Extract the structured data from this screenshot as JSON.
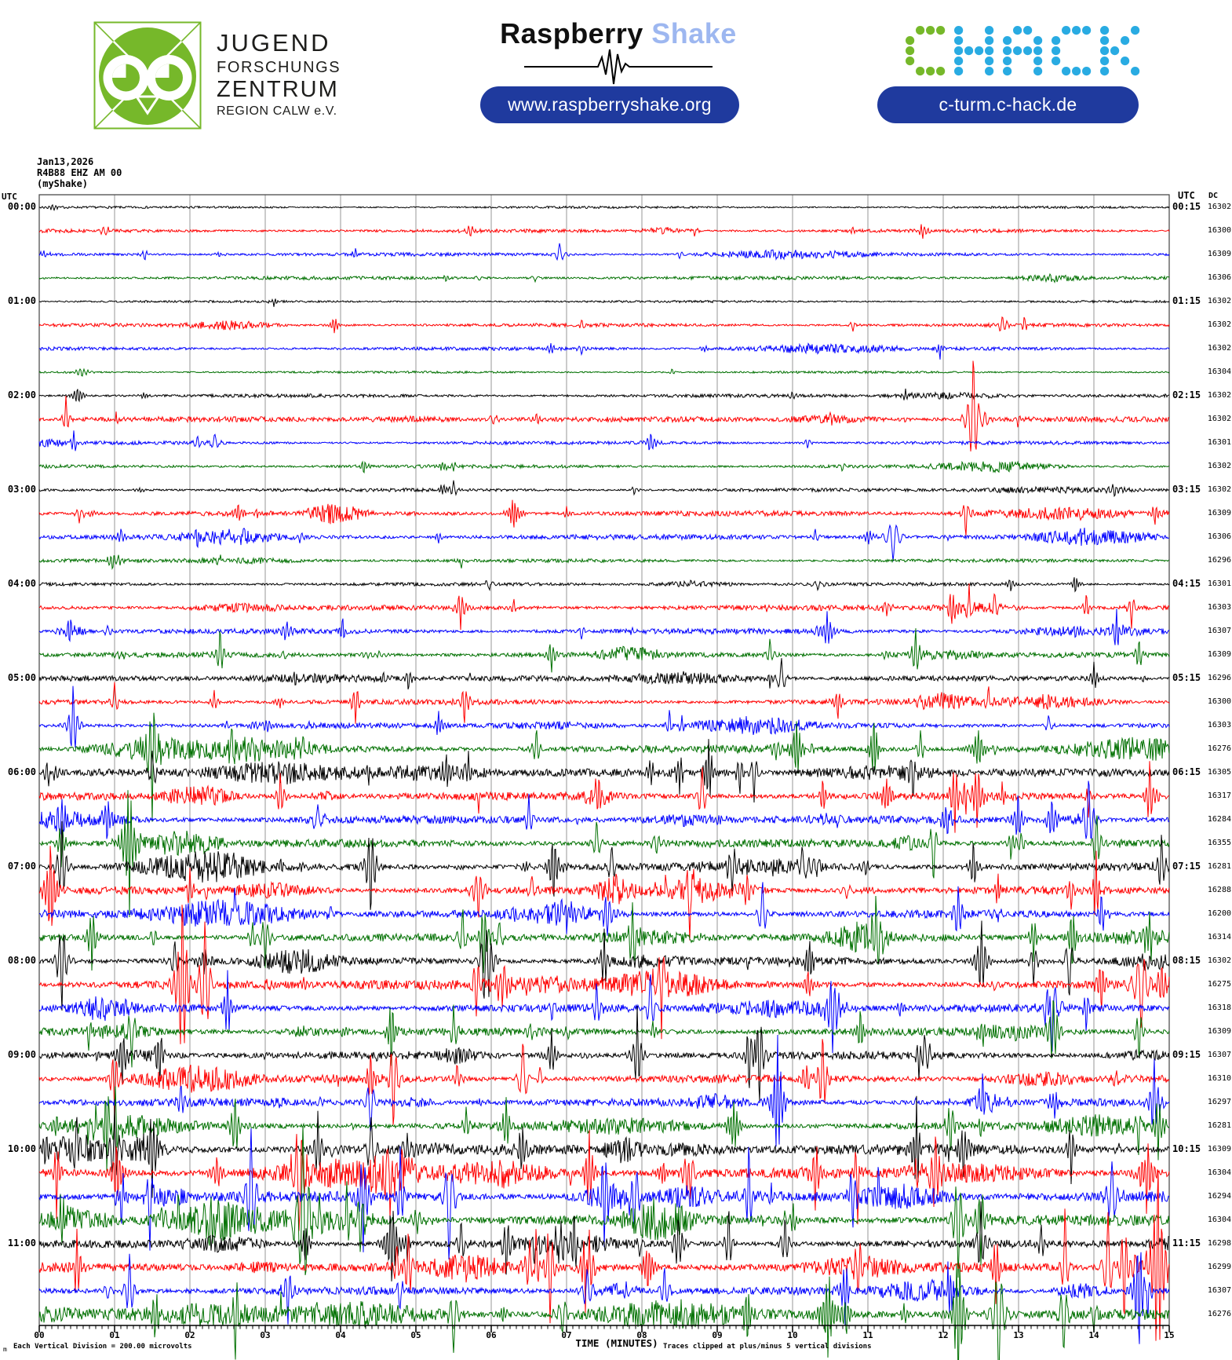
{
  "header": {
    "jfz": {
      "lines": [
        "JUGEND",
        "FORSCHUNGS",
        "ZENTRUM",
        "REGION CALW e.V."
      ],
      "logo_color": "#76b82a"
    },
    "raspberry_shake": {
      "word1": "Raspberry",
      "word2": "Shake",
      "word2_color": "#9db7f0",
      "url": "www.raspberryshake.org",
      "pill_color": "#1f3a9e"
    },
    "c_hack": {
      "wordmark": "C-HACK",
      "c_color": "#76b82a",
      "hack_color": "#29abe2",
      "url": "c-turm.c-hack.de",
      "pill_color": "#1f3a9e"
    }
  },
  "plot": {
    "title_line1": "Jan13,2026",
    "title_line2": "R4B88 EHZ AM 00",
    "title_line3": "(myShake)",
    "utc_left_header": "UTC",
    "utc_right_header": "UTC",
    "dc_header": "DC",
    "footer_left_mark": "m",
    "footer_left": "Each Vertical Division =  200.00 microvolts",
    "x_axis_title": "TIME (MINUTES)",
    "footer_right": "Traces clipped at plus/minus 5 vertical divisions"
  },
  "chart_data": {
    "type": "helicorder-seismogram",
    "station": "R4B88 EHZ AM 00",
    "date": "Jan13,2026",
    "network_note": "(myShake)",
    "minutes_per_line": 15,
    "x_tick_labels": [
      "00",
      "01",
      "02",
      "03",
      "04",
      "05",
      "06",
      "07",
      "08",
      "09",
      "10",
      "11",
      "12",
      "13",
      "14",
      "15"
    ],
    "xlabel": "TIME (MINUTES)",
    "microvolts_per_division": 200.0,
    "clip_divisions": 5,
    "trace_color_cycle": [
      "#000000",
      "#ff0000",
      "#0000ff",
      "#007000"
    ],
    "grid_color": "#979797",
    "hours": [
      {
        "left": "00:00",
        "right": "00:15"
      },
      {
        "left": "01:00",
        "right": "01:15"
      },
      {
        "left": "02:00",
        "right": "02:15"
      },
      {
        "left": "03:00",
        "right": "03:15"
      },
      {
        "left": "04:00",
        "right": "04:15"
      },
      {
        "left": "05:00",
        "right": "05:15"
      },
      {
        "left": "06:00",
        "right": "06:15"
      },
      {
        "left": "07:00",
        "right": "07:15"
      },
      {
        "left": "08:00",
        "right": "08:15"
      },
      {
        "left": "09:00",
        "right": "09:15"
      },
      {
        "left": "10:00",
        "right": "10:15"
      },
      {
        "left": "11:00",
        "right": "11:15"
      }
    ],
    "rows": [
      {
        "dc": 16302,
        "activity": 0,
        "ev": []
      },
      {
        "dc": 16300,
        "activity": 1,
        "ev": [
          [
            8.7,
            7
          ],
          [
            10.8,
            6
          ]
        ]
      },
      {
        "dc": 16309,
        "activity": 1,
        "ev": [
          [
            1.4,
            9
          ],
          [
            4.2,
            8
          ],
          [
            8.5,
            6
          ]
        ]
      },
      {
        "dc": 16306,
        "activity": 1,
        "ev": [
          [
            5.4,
            5
          ]
        ]
      },
      {
        "dc": 16302,
        "activity": 0,
        "ev": []
      },
      {
        "dc": 16302,
        "activity": 1,
        "ev": [
          [
            7.2,
            7
          ],
          [
            10.8,
            8
          ]
        ]
      },
      {
        "dc": 16302,
        "activity": 1,
        "ev": [
          [
            7.2,
            10
          ]
        ]
      },
      {
        "dc": 16304,
        "activity": 0,
        "ev": [
          [
            8.4,
            5
          ]
        ]
      },
      {
        "dc": 16302,
        "activity": 1,
        "ev": [
          [
            11.5,
            6
          ]
        ]
      },
      {
        "dc": 16302,
        "activity": 2,
        "ev": [
          [
            12.4,
            88
          ],
          [
            6.6,
            8
          ],
          [
            10.5,
            9
          ]
        ]
      },
      {
        "dc": 16301,
        "activity": 1,
        "ev": [
          [
            2.1,
            12
          ],
          [
            10.2,
            8
          ]
        ]
      },
      {
        "dc": 16302,
        "activity": 1,
        "ev": [
          [
            5.5,
            8
          ]
        ]
      },
      {
        "dc": 16302,
        "activity": 1,
        "ev": [
          [
            5.5,
            12
          ],
          [
            7.9,
            7
          ]
        ]
      },
      {
        "dc": 16309,
        "activity": 2,
        "ev": [
          [
            12.3,
            30
          ],
          [
            7.0,
            8
          ],
          [
            2.9,
            7
          ]
        ]
      },
      {
        "dc": 16306,
        "activity": 2,
        "ev": [
          [
            2.1,
            14
          ],
          [
            5.3,
            10
          ],
          [
            10.3,
            10
          ]
        ]
      },
      {
        "dc": 16296,
        "activity": 1,
        "ev": [
          [
            5.6,
            8
          ],
          [
            2.4,
            6
          ]
        ]
      },
      {
        "dc": 16301,
        "activity": 1,
        "ev": [
          [
            12.9,
            12
          ],
          [
            8.7,
            8
          ]
        ]
      },
      {
        "dc": 16303,
        "activity": 2,
        "ev": [
          [
            13.9,
            20
          ],
          [
            14.5,
            25
          ],
          [
            6.3,
            10
          ]
        ]
      },
      {
        "dc": 16307,
        "activity": 2,
        "ev": [
          [
            0.4,
            18
          ],
          [
            14.3,
            30
          ],
          [
            7.2,
            12
          ]
        ]
      },
      {
        "dc": 16309,
        "activity": 2,
        "ev": [
          [
            2.4,
            35
          ],
          [
            6.8,
            25
          ],
          [
            9.7,
            20
          ],
          [
            14.6,
            25
          ]
        ]
      },
      {
        "dc": 16296,
        "activity": 2,
        "ev": [
          [
            3.4,
            15
          ],
          [
            4.9,
            18
          ],
          [
            14.0,
            20
          ],
          [
            9.7,
            12
          ]
        ]
      },
      {
        "dc": 16300,
        "activity": 2,
        "ev": [
          [
            1.0,
            25
          ],
          [
            4.2,
            30
          ],
          [
            10.6,
            25
          ],
          [
            12.6,
            20
          ]
        ]
      },
      {
        "dc": 16303,
        "activity": 2,
        "ev": [
          [
            0.45,
            55
          ],
          [
            5.3,
            20
          ],
          [
            13.4,
            15
          ]
        ]
      },
      {
        "dc": 16276,
        "activity": 3,
        "ev": [
          [
            1.5,
            90
          ],
          [
            3.5,
            25
          ],
          [
            6.6,
            30
          ],
          [
            11.7,
            25
          ]
        ]
      },
      {
        "dc": 16305,
        "activity": 3,
        "ev": [
          [
            1.5,
            30
          ],
          [
            5.7,
            25
          ],
          [
            8.5,
            30
          ],
          [
            9.3,
            30
          ],
          [
            11.6,
            35
          ]
        ]
      },
      {
        "dc": 16317,
        "activity": 3,
        "ev": [
          [
            3.2,
            35
          ],
          [
            8.8,
            40
          ],
          [
            10.4,
            30
          ],
          [
            12.3,
            30
          ]
        ]
      },
      {
        "dc": 16284,
        "activity": 3,
        "ev": [
          [
            0.3,
            40
          ],
          [
            0.9,
            35
          ],
          [
            6.5,
            35
          ],
          [
            12.1,
            30
          ]
        ]
      },
      {
        "dc": 16355,
        "activity": 3,
        "ev": [
          [
            1.2,
            110
          ],
          [
            7.4,
            30
          ],
          [
            12.9,
            25
          ]
        ]
      },
      {
        "dc": 16281,
        "activity": 3,
        "ev": [
          [
            0.3,
            60
          ],
          [
            4.4,
            70
          ],
          [
            7.6,
            35
          ],
          [
            9.2,
            40
          ],
          [
            12.4,
            40
          ],
          [
            14.9,
            45
          ]
        ]
      },
      {
        "dc": 16288,
        "activity": 3,
        "ev": [
          [
            0.15,
            80
          ],
          [
            2.0,
            30
          ],
          [
            9.4,
            35
          ],
          [
            13.7,
            30
          ]
        ]
      },
      {
        "dc": 16200,
        "activity": 3,
        "ev": [
          [
            2.6,
            30
          ],
          [
            7.0,
            35
          ],
          [
            9.6,
            45
          ],
          [
            12.2,
            50
          ]
        ]
      },
      {
        "dc": 16314,
        "activity": 3,
        "ev": [
          [
            0.7,
            50
          ],
          [
            3.0,
            40
          ],
          [
            5.9,
            60
          ],
          [
            13.2,
            35
          ]
        ]
      },
      {
        "dc": 16302,
        "activity": 3,
        "ev": [
          [
            0.3,
            70
          ],
          [
            5.9,
            50
          ],
          [
            7.5,
            40
          ],
          [
            13.2,
            35
          ]
        ]
      },
      {
        "dc": 16275,
        "activity": 3,
        "ev": [
          [
            1.9,
            120
          ],
          [
            2.2,
            90
          ],
          [
            5.8,
            40
          ],
          [
            14.1,
            45
          ]
        ]
      },
      {
        "dc": 16318,
        "activity": 3,
        "ev": [
          [
            2.5,
            45
          ],
          [
            7.4,
            35
          ],
          [
            13.4,
            40
          ]
        ]
      },
      {
        "dc": 16309,
        "activity": 3,
        "ev": [
          [
            5.5,
            30
          ],
          [
            10.9,
            35
          ],
          [
            14.6,
            40
          ]
        ]
      },
      {
        "dc": 16307,
        "activity": 3,
        "ev": [
          [
            1.1,
            45
          ],
          [
            1.6,
            40
          ],
          [
            6.8,
            35
          ],
          [
            9.5,
            30
          ]
        ]
      },
      {
        "dc": 16310,
        "activity": 3,
        "ev": [
          [
            1.0,
            50
          ],
          [
            4.4,
            40
          ],
          [
            10.4,
            60
          ]
        ]
      },
      {
        "dc": 16297,
        "activity": 3,
        "ev": [
          [
            4.4,
            45
          ],
          [
            9.8,
            90
          ],
          [
            14.8,
            60
          ]
        ]
      },
      {
        "dc": 16281,
        "activity": 3,
        "ev": [
          [
            0.9,
            60
          ],
          [
            2.6,
            50
          ],
          [
            6.2,
            40
          ],
          [
            12.1,
            45
          ]
        ]
      },
      {
        "dc": 16309,
        "activity": 4,
        "ev": [
          [
            1.0,
            60
          ],
          [
            1.5,
            55
          ],
          [
            3.7,
            50
          ],
          [
            6.4,
            40
          ],
          [
            13.7,
            45
          ]
        ]
      },
      {
        "dc": 16304,
        "activity": 4,
        "ev": [
          [
            7.3,
            60
          ],
          [
            8.6,
            50
          ],
          [
            10.3,
            55
          ],
          [
            11.9,
            60
          ],
          [
            14.7,
            70
          ]
        ]
      },
      {
        "dc": 16294,
        "activity": 4,
        "ev": [
          [
            4.3,
            70
          ],
          [
            7.5,
            60
          ],
          [
            7.9,
            55
          ],
          [
            10.8,
            50
          ]
        ]
      },
      {
        "dc": 16304,
        "activity": 4,
        "ev": [
          [
            0.3,
            50
          ],
          [
            2.3,
            45
          ],
          [
            3.5,
            130
          ],
          [
            12.2,
            80
          ],
          [
            12.5,
            60
          ]
        ]
      },
      {
        "dc": 16298,
        "activity": 3,
        "ev": [
          [
            5.6,
            35
          ],
          [
            6.2,
            40
          ],
          [
            7.1,
            45
          ],
          [
            9.9,
            40
          ],
          [
            12.5,
            50
          ],
          [
            13.3,
            45
          ]
        ]
      },
      {
        "dc": 16299,
        "activity": 4,
        "ev": [
          [
            0.5,
            45
          ],
          [
            4.9,
            55
          ],
          [
            7.3,
            60
          ],
          [
            10.9,
            50
          ],
          [
            12.7,
            55
          ],
          [
            14.4,
            60
          ],
          [
            14.85,
            140
          ]
        ]
      },
      {
        "dc": 16307,
        "activity": 3,
        "ev": [
          [
            1.2,
            50
          ],
          [
            3.3,
            45
          ],
          [
            10.7,
            45
          ],
          [
            14.6,
            90
          ]
        ]
      },
      {
        "dc": 16276,
        "activity": 4,
        "ev": [
          [
            2.6,
            60
          ],
          [
            5.5,
            50
          ],
          [
            9.4,
            45
          ],
          [
            12.2,
            100
          ],
          [
            13.6,
            55
          ]
        ]
      }
    ]
  }
}
